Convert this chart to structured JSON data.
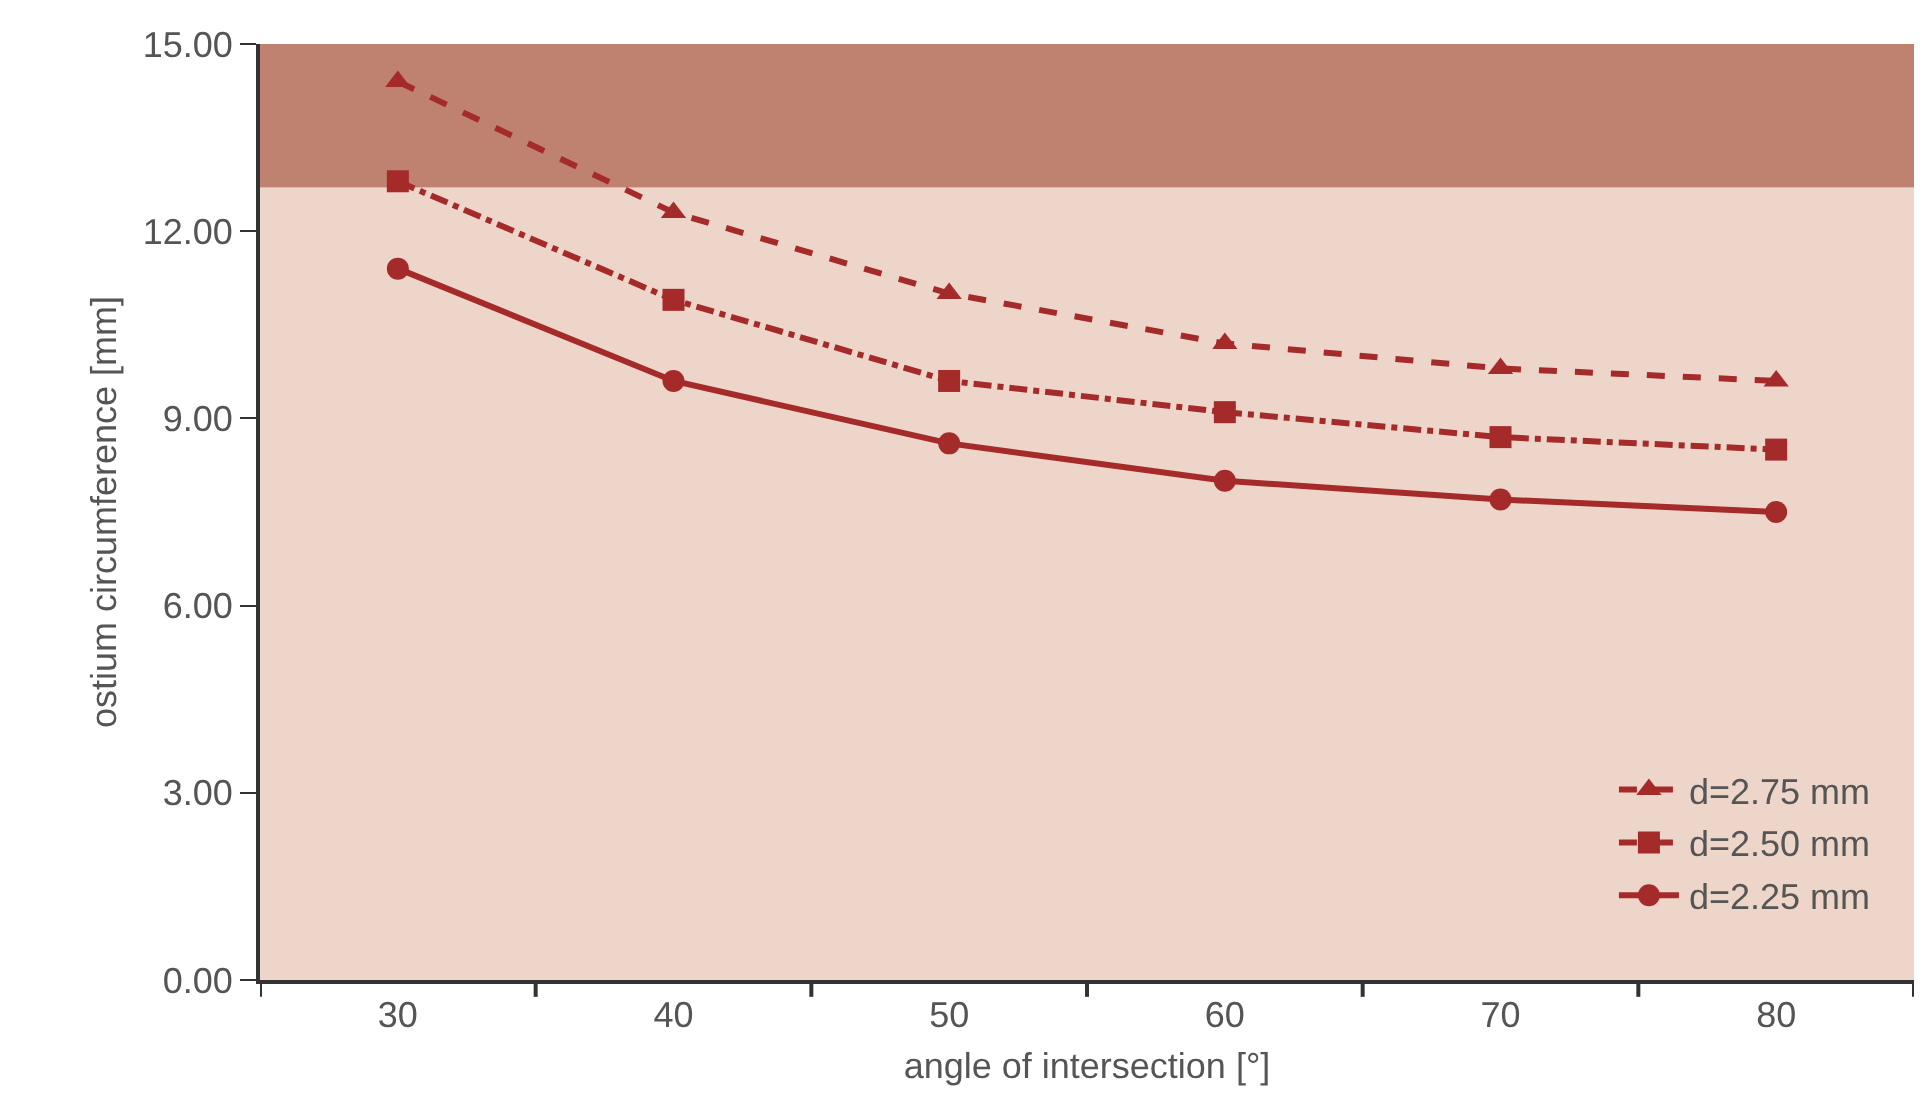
{
  "chart_data": {
    "type": "line",
    "xlabel": "angle of intersection [°]",
    "ylabel": "ostium circumference [mm]",
    "categories": [
      "30",
      "40",
      "50",
      "60",
      "70",
      "80"
    ],
    "series": [
      {
        "name": "d=2.75 mm",
        "color": "#a52a2a",
        "values": [
          14.4,
          12.3,
          11.0,
          10.2,
          9.8,
          9.6
        ],
        "marker": "triangle",
        "line_style": "dashed"
      },
      {
        "name": "d=2.50 mm",
        "color": "#a52a2a",
        "values": [
          12.8,
          10.9,
          9.6,
          9.1,
          8.7,
          8.5
        ],
        "marker": "square",
        "line_style": "dashdot"
      },
      {
        "name": "d=2.25 mm",
        "color": "#a52a2a",
        "values": [
          11.4,
          9.6,
          8.6,
          8.0,
          7.7,
          7.5
        ],
        "marker": "circle",
        "line_style": "solid"
      }
    ],
    "ylim": [
      0,
      15
    ],
    "yticks": [
      {
        "value": 0,
        "label": "0.00"
      },
      {
        "value": 3,
        "label": "3.00"
      },
      {
        "value": 6,
        "label": "6.00"
      },
      {
        "value": 9,
        "label": "9.00"
      },
      {
        "value": 12,
        "label": "12.00"
      },
      {
        "value": 15,
        "label": "15.00"
      }
    ],
    "bands": [
      {
        "axis": "y",
        "from": 0,
        "to": 12.7,
        "color": "#eed5c9"
      },
      {
        "axis": "y",
        "from": 12.7,
        "to": 15,
        "color": "#c08270"
      }
    ],
    "grid": false,
    "legend": "bottom right"
  }
}
